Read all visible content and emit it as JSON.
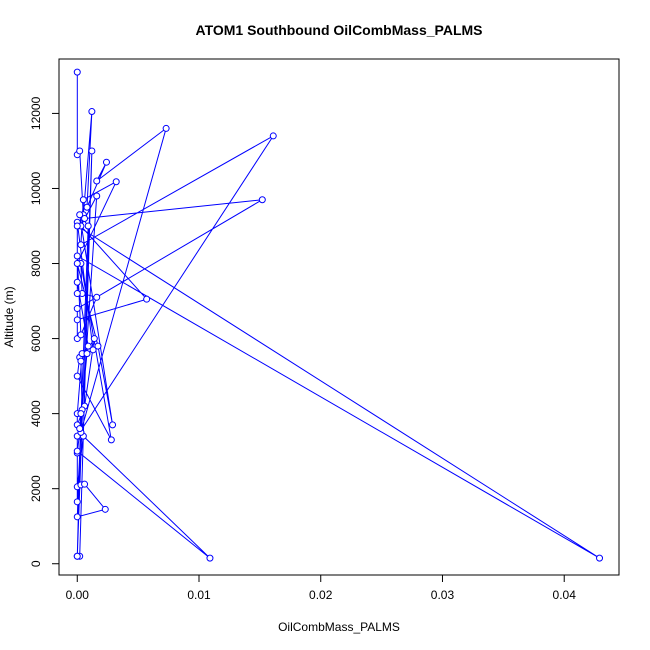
{
  "chart_data": {
    "type": "line",
    "title": "ATOM1 Southbound OilCombMass_PALMS",
    "xlabel": "OilCombMass_PALMS",
    "ylabel": "Altitude (m)",
    "xlim": [
      -0.0015,
      0.0445
    ],
    "ylim": [
      -300,
      13450
    ],
    "x_ticks": [
      0,
      0.01,
      0.02,
      0.03,
      0.04
    ],
    "x_tick_labels": [
      "0.00",
      "0.01",
      "0.02",
      "0.03",
      "0.04"
    ],
    "y_ticks": [
      0,
      2000,
      4000,
      6000,
      8000,
      10000,
      12000
    ],
    "y_tick_labels": [
      "0",
      "2000",
      "4000",
      "6000",
      "8000",
      "10000",
      "12000"
    ],
    "color": "#0000ff",
    "series": [
      {
        "x": [
          0.0,
          0.0,
          0.0002,
          0.0005,
          0.0012,
          0.0008,
          0.0024,
          0.0016,
          0.0073,
          0.0002,
          0.0003,
          0.0016,
          0.0003,
          0.0057,
          0.0,
          0.0,
          0.0,
          0.0152,
          0.0006,
          0.0,
          0.0013,
          0.0002,
          0.0,
          0.0028,
          0.0003,
          0.0004,
          0.0016,
          0.0003,
          0.0,
          0.0429,
          0.0,
          0.0,
          0.0,
          0.0009,
          0.0004,
          0.0,
          0.0,
          0.0006,
          0.0014,
          0.0003,
          0.0004,
          0.0,
          0.0,
          0.0109,
          0.0005,
          0.0,
          0.0003,
          0.0006,
          0.0023,
          0.0,
          0.0009,
          0.0002,
          0.0029,
          0.0017,
          0.0,
          0.0032,
          0.0005,
          0.0003,
          0.0161,
          0.0,
          0.0,
          0.0003,
          0.0002,
          0.0008,
          0.0003,
          0.0,
          0.0002,
          0.0012,
          0.0
        ],
        "y": [
          13100,
          10900,
          11000,
          9300,
          12050,
          9500,
          10700,
          10200,
          11600,
          3400,
          3500,
          9800,
          9000,
          7050,
          6500,
          6000,
          6800,
          9700,
          9200,
          9100,
          5700,
          5500,
          5000,
          3300,
          8000,
          7200,
          7100,
          6100,
          8200,
          150,
          9000,
          7200,
          7500,
          5800,
          5600,
          4000,
          3700,
          4200,
          6000,
          5400,
          4100,
          2950,
          3000,
          150,
          3400,
          2050,
          2100,
          2120,
          1450,
          1250,
          9000,
          9300,
          3700,
          5800,
          8000,
          10180,
          9700,
          8500,
          11400,
          3400,
          1650,
          3500,
          3600,
          5600,
          4000,
          200,
          200,
          11000,
          200
        ]
      }
    ]
  }
}
